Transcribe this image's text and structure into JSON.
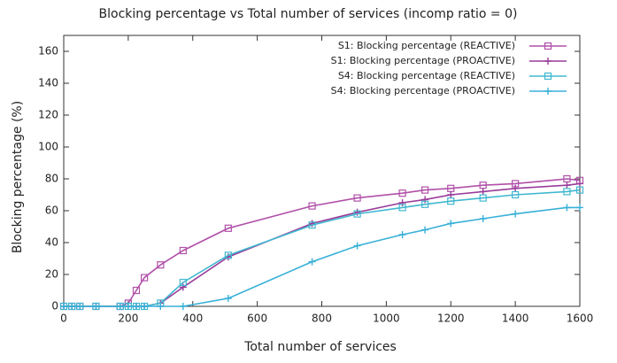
{
  "chart_data": {
    "type": "line",
    "title": "Blocking percentage vs Total number of services (incomp ratio = 0)",
    "xlabel": "Total number of services",
    "ylabel": "Blocking percentage (%)",
    "x": [
      0,
      25,
      50,
      100,
      175,
      200,
      225,
      250,
      300,
      370,
      510,
      770,
      910,
      1050,
      1120,
      1200,
      1300,
      1400,
      1560,
      1600
    ],
    "series": [
      {
        "name": "S1: Blocking percentage (REACTIVE)",
        "color": "#b050a8",
        "marker": "square",
        "values": [
          0,
          0,
          0,
          0,
          0,
          2,
          10,
          18,
          26,
          35,
          49,
          63,
          68,
          71,
          73,
          74,
          76,
          77,
          80,
          79
        ]
      },
      {
        "name": "S1: Blocking percentage (PROACTIVE)",
        "color": "#9a3c9a",
        "marker": "plus",
        "values": [
          0,
          0,
          0,
          0,
          0,
          0,
          0,
          0,
          2,
          12,
          31,
          52,
          59,
          65,
          67,
          70,
          72,
          74,
          76,
          77
        ]
      },
      {
        "name": "S4: Blocking percentage (REACTIVE)",
        "color": "#40b8d0",
        "marker": "square",
        "values": [
          0,
          0,
          0,
          0,
          0,
          0,
          0,
          0,
          2,
          15,
          32,
          51,
          58,
          62,
          64,
          66,
          68,
          70,
          72,
          73
        ]
      },
      {
        "name": "S4: Blocking percentage (PROACTIVE)",
        "color": "#38b0d8",
        "marker": "plus",
        "values": [
          0,
          0,
          0,
          0,
          0,
          0,
          0,
          0,
          0,
          0,
          5,
          28,
          38,
          45,
          48,
          52,
          55,
          58,
          62,
          62
        ]
      }
    ],
    "xlim": [
      0,
      1600
    ],
    "xticks": [
      0,
      200,
      400,
      600,
      800,
      1000,
      1200,
      1400,
      1600
    ],
    "ylim": [
      0,
      170
    ],
    "yticks": [
      0,
      20,
      40,
      60,
      80,
      100,
      120,
      140,
      160
    ],
    "legend": "top-right"
  }
}
